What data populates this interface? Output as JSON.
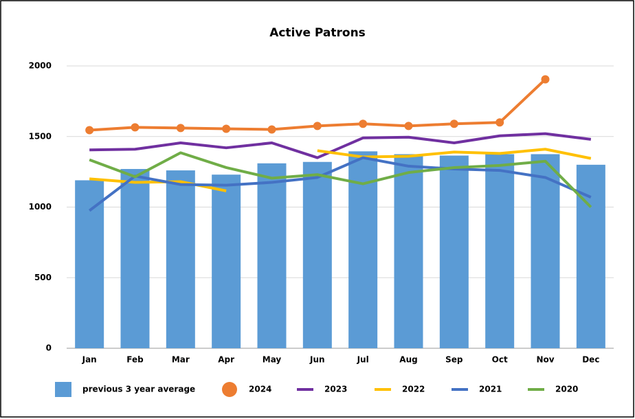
{
  "chart_data": {
    "type": "bar_line",
    "title": "Active Patrons",
    "categories": [
      "Jan",
      "Feb",
      "Mar",
      "Apr",
      "May",
      "Jun",
      "Jul",
      "Aug",
      "Sep",
      "Oct",
      "Nov",
      "Dec"
    ],
    "ylim": [
      0,
      2000
    ],
    "yticks": [
      0,
      500,
      1000,
      1500,
      2000
    ],
    "grid": true,
    "legend": "bottom",
    "series": [
      {
        "name": "previous 3 year average",
        "type": "bar",
        "color": "#5b9bd5",
        "values": [
          1190,
          1270,
          1260,
          1230,
          1310,
          1320,
          1395,
          1375,
          1365,
          1375,
          1375,
          1300
        ]
      },
      {
        "name": "2024",
        "type": "line",
        "marker": true,
        "color": "#ed7d31",
        "values": [
          1545,
          1565,
          1560,
          1555,
          1550,
          1575,
          1590,
          1575,
          1590,
          1600,
          1905,
          null
        ]
      },
      {
        "name": "2023",
        "type": "line",
        "color": "#7030a0",
        "values": [
          1405,
          1410,
          1455,
          1420,
          1455,
          1350,
          1490,
          1495,
          1455,
          1505,
          1520,
          1480
        ]
      },
      {
        "name": "2022",
        "type": "line",
        "color": "#ffc000",
        "values": [
          1200,
          1175,
          1180,
          1115,
          null,
          1400,
          1355,
          1360,
          1390,
          1380,
          1410,
          1345
        ]
      },
      {
        "name": "2021",
        "type": "line",
        "color": "#4472c4",
        "values": [
          975,
          1220,
          1160,
          1155,
          1175,
          1210,
          1350,
          1290,
          1270,
          1260,
          1210,
          1070
        ]
      },
      {
        "name": "2020",
        "type": "line",
        "color": "#70ad47",
        "values": [
          1335,
          1215,
          1385,
          1280,
          1205,
          1230,
          1165,
          1245,
          1280,
          1295,
          1325,
          1000
        ]
      }
    ]
  }
}
